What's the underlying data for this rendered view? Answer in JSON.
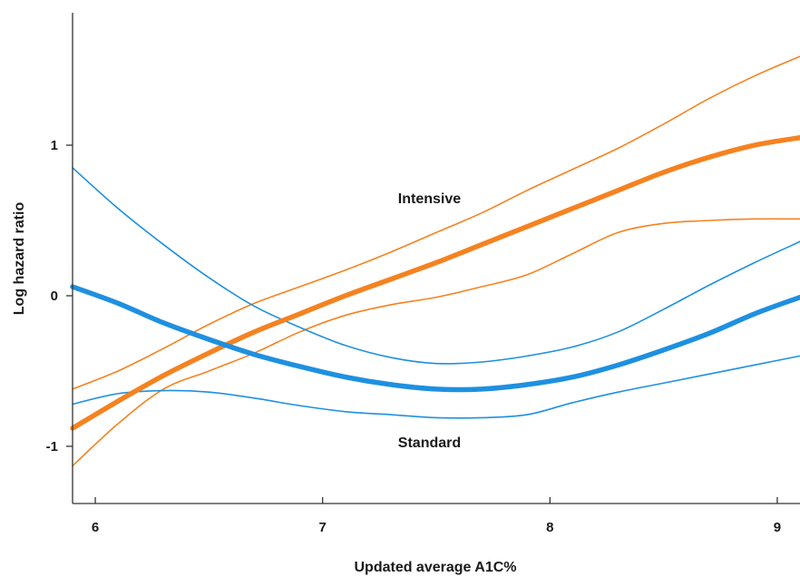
{
  "chart_data": {
    "type": "line",
    "xlabel": "Updated average A1C%",
    "ylabel": "Log hazard ratio",
    "xlim": [
      5.9,
      9.1
    ],
    "ylim": [
      -1.38,
      1.88
    ],
    "xticks": [
      6,
      7,
      8,
      9
    ],
    "yticks": [
      -1,
      0,
      1
    ],
    "grid": false,
    "annotations": [
      {
        "text": "Intensive",
        "x": 7.47,
        "y": 0.65
      },
      {
        "text": "Standard",
        "x": 7.47,
        "y": -0.97
      }
    ],
    "series": [
      {
        "color": "#f58220",
        "role": "estimate",
        "x": [
          5.9,
          6.1,
          6.3,
          6.5,
          6.7,
          6.9,
          7.1,
          7.3,
          7.5,
          7.7,
          7.9,
          8.1,
          8.3,
          8.5,
          8.7,
          8.9,
          9.1
        ],
        "y": [
          -0.88,
          -0.7,
          -0.53,
          -0.38,
          -0.24,
          -0.12,
          0.0,
          0.11,
          0.22,
          0.34,
          0.46,
          0.58,
          0.7,
          0.82,
          0.92,
          1.0,
          1.05
        ]
      },
      {
        "color": "#f58220",
        "role": "upper",
        "x": [
          5.9,
          6.1,
          6.3,
          6.5,
          6.7,
          6.9,
          7.1,
          7.3,
          7.5,
          7.7,
          7.9,
          8.1,
          8.3,
          8.5,
          8.7,
          8.9,
          9.1
        ],
        "y": [
          -0.62,
          -0.5,
          -0.35,
          -0.19,
          -0.05,
          0.06,
          0.17,
          0.29,
          0.42,
          0.55,
          0.7,
          0.84,
          0.98,
          1.14,
          1.31,
          1.46,
          1.59
        ]
      },
      {
        "color": "#f58220",
        "role": "lower",
        "x": [
          5.9,
          6.1,
          6.3,
          6.5,
          6.7,
          6.9,
          7.1,
          7.3,
          7.5,
          7.7,
          7.9,
          8.1,
          8.3,
          8.5,
          8.7,
          8.9,
          9.1
        ],
        "y": [
          -1.13,
          -0.85,
          -0.62,
          -0.5,
          -0.38,
          -0.24,
          -0.13,
          -0.06,
          -0.01,
          0.06,
          0.14,
          0.28,
          0.42,
          0.48,
          0.5,
          0.51,
          0.51
        ]
      },
      {
        "color": "#1e90e0",
        "role": "estimate",
        "x": [
          5.9,
          6.1,
          6.3,
          6.5,
          6.7,
          6.9,
          7.1,
          7.3,
          7.5,
          7.7,
          7.9,
          8.1,
          8.3,
          8.5,
          8.7,
          8.9,
          9.1
        ],
        "y": [
          0.06,
          -0.05,
          -0.18,
          -0.29,
          -0.39,
          -0.47,
          -0.54,
          -0.59,
          -0.62,
          -0.62,
          -0.59,
          -0.54,
          -0.46,
          -0.36,
          -0.25,
          -0.12,
          -0.01
        ]
      },
      {
        "color": "#1e90e0",
        "role": "upper",
        "x": [
          5.9,
          6.1,
          6.3,
          6.5,
          6.7,
          6.9,
          7.1,
          7.3,
          7.5,
          7.7,
          7.9,
          8.1,
          8.3,
          8.5,
          8.7,
          8.9,
          9.1
        ],
        "y": [
          0.85,
          0.58,
          0.34,
          0.12,
          -0.07,
          -0.21,
          -0.33,
          -0.41,
          -0.45,
          -0.44,
          -0.4,
          -0.34,
          -0.24,
          -0.09,
          0.07,
          0.22,
          0.36
        ]
      },
      {
        "color": "#1e90e0",
        "role": "lower",
        "x": [
          5.9,
          6.1,
          6.3,
          6.5,
          6.7,
          6.9,
          7.1,
          7.3,
          7.5,
          7.7,
          7.9,
          8.1,
          8.3,
          8.5,
          8.7,
          8.9,
          9.1
        ],
        "y": [
          -0.72,
          -0.65,
          -0.63,
          -0.64,
          -0.68,
          -0.73,
          -0.77,
          -0.79,
          -0.81,
          -0.81,
          -0.79,
          -0.71,
          -0.64,
          -0.58,
          -0.52,
          -0.46,
          -0.4
        ]
      }
    ]
  }
}
